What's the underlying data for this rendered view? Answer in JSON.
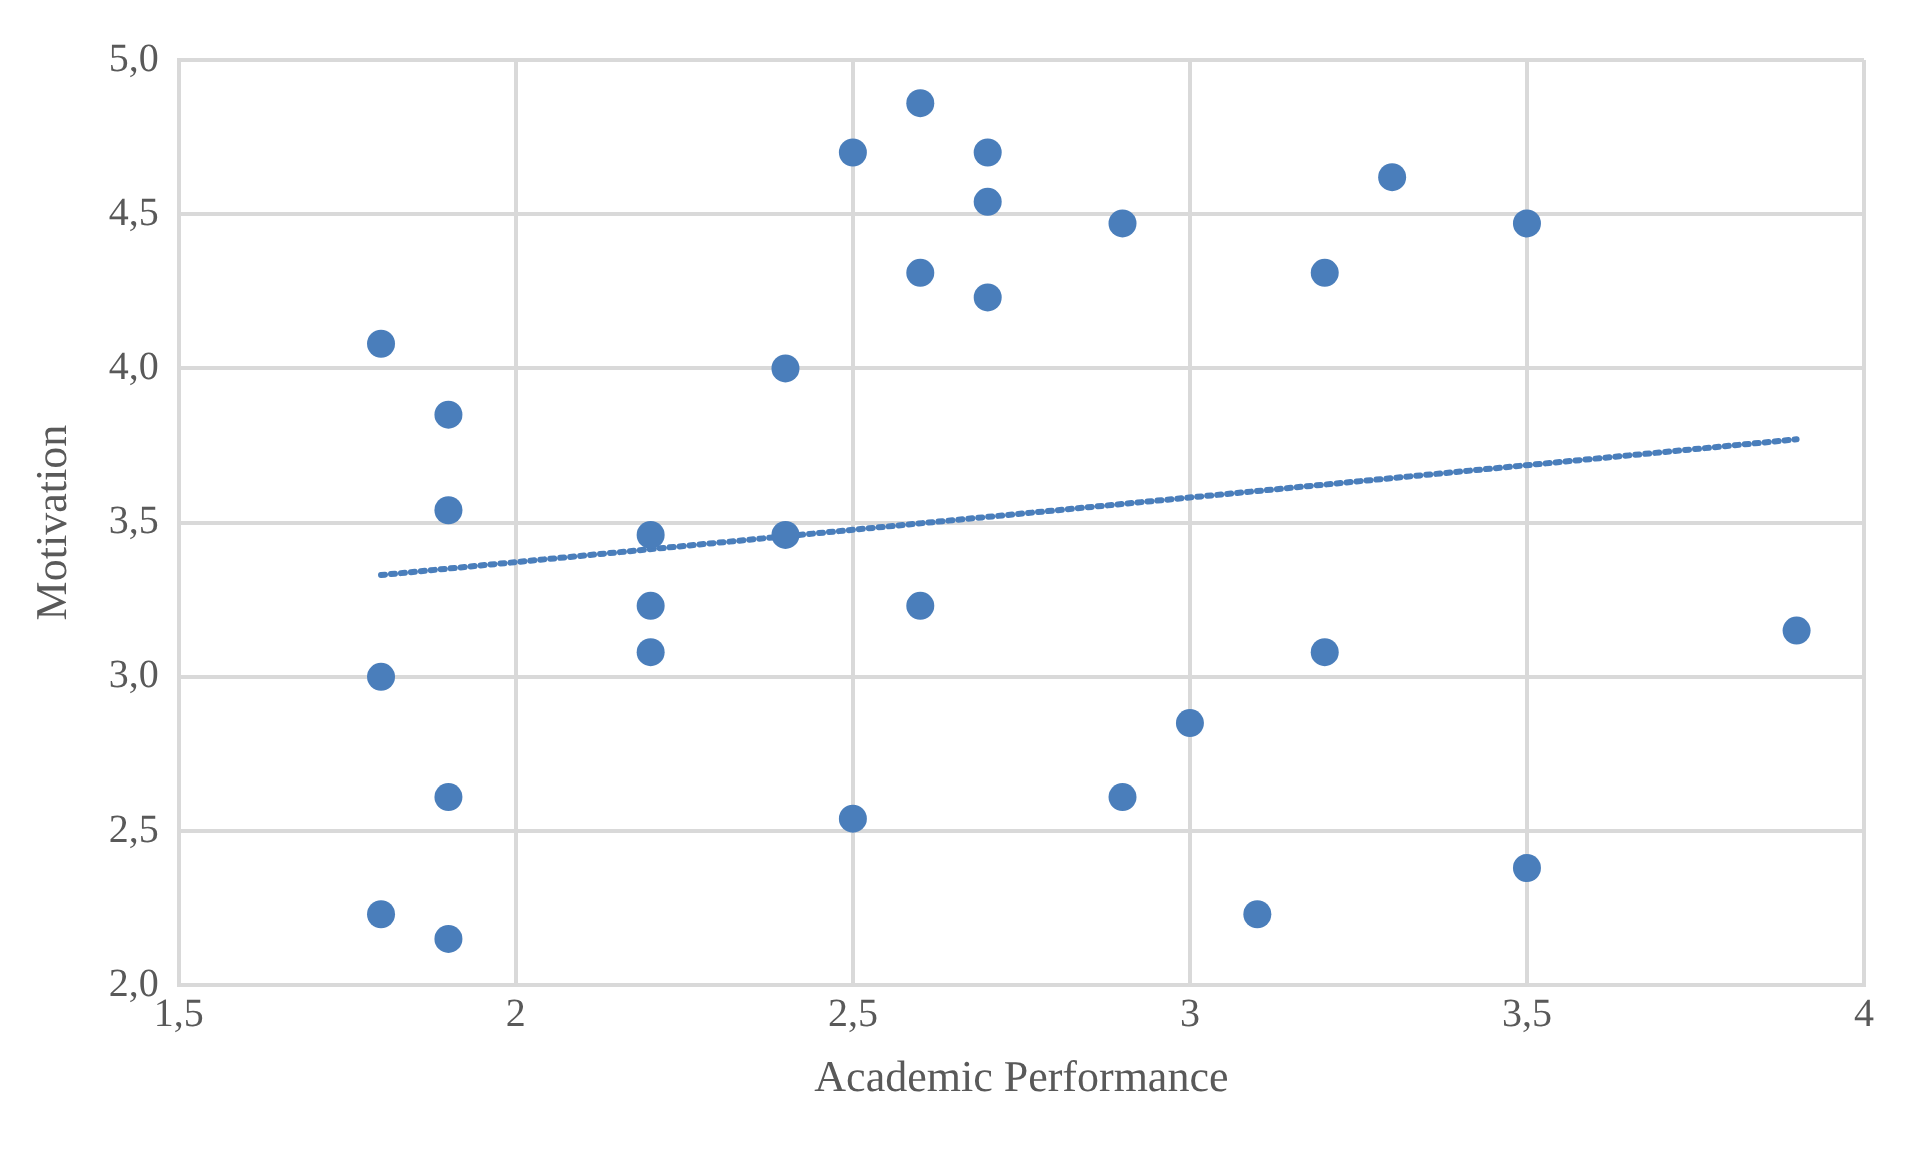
{
  "chart_data": {
    "type": "scatter",
    "xlabel": "Academic Performance",
    "ylabel": "Motivation",
    "xlim": [
      1.5,
      4
    ],
    "xticks": [
      {
        "value": 1.5,
        "label": "1,5"
      },
      2,
      {
        "value": 2.5,
        "label": "2,5"
      },
      3,
      {
        "value": 3.5,
        "label": "3,5"
      },
      4
    ],
    "ylim": [
      2,
      5
    ],
    "yticks": [
      {
        "value": 2,
        "label": "2,0"
      },
      {
        "value": 2.5,
        "label": "2,5"
      },
      {
        "value": 3,
        "label": "3,0"
      },
      {
        "value": 3.5,
        "label": "3,5"
      },
      {
        "value": 4,
        "label": "4,0"
      },
      {
        "value": 4.5,
        "label": "4,5"
      },
      {
        "value": 5,
        "label": "5,0"
      }
    ],
    "grid": true,
    "legend": false,
    "marker": "circle",
    "series": [
      {
        "type": "scatter",
        "color": "#4a7ebb",
        "x": [
          1.8,
          1.9,
          1.9,
          1.8,
          1.9,
          1.8,
          1.9,
          2.2,
          2.2,
          2.2,
          2.4,
          2.4,
          2.5,
          2.5,
          2.6,
          2.6,
          2.6,
          2.7,
          2.7,
          2.7,
          2.9,
          2.9,
          3.0,
          3.1,
          3.2,
          3.2,
          3.3,
          3.5,
          3.5,
          3.9
        ],
        "values": [
          4.08,
          3.85,
          3.54,
          3.0,
          2.61,
          2.23,
          2.15,
          3.46,
          3.23,
          3.08,
          4.0,
          3.46,
          4.7,
          2.54,
          4.86,
          4.31,
          3.23,
          4.7,
          4.54,
          4.23,
          4.47,
          2.61,
          2.85,
          2.23,
          4.31,
          3.08,
          4.62,
          4.47,
          2.38,
          3.15
        ]
      },
      {
        "type": "line",
        "color": "#4a7ebb",
        "line_style": "dotted",
        "marker": "none",
        "x": [
          1.8,
          3.9
        ],
        "values": [
          3.33,
          3.77
        ]
      }
    ]
  }
}
